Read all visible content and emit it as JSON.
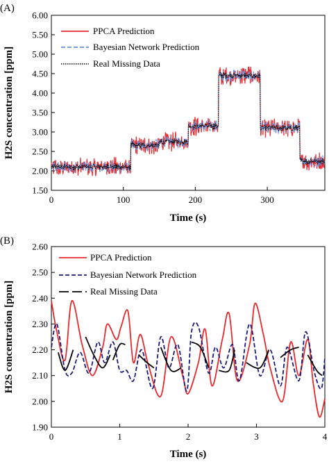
{
  "chart_data": [
    {
      "panel_label": "(A)",
      "type": "line",
      "xlabel": "Time (s)",
      "ylabel": "H2S concentration [ppm]",
      "xlim": [
        0,
        380
      ],
      "ylim": [
        1.5,
        6.0
      ],
      "xticks": [
        "0",
        "100",
        "200",
        "300"
      ],
      "xtick_values": [
        0,
        100,
        200,
        300
      ],
      "yticks": [
        "1.50",
        "2.00",
        "2.50",
        "3.00",
        "3.50",
        "4.00",
        "4.50",
        "5.00",
        "5.50",
        "6.00"
      ],
      "ytick_values": [
        1.5,
        2.0,
        2.5,
        3.0,
        3.5,
        4.0,
        4.5,
        5.0,
        5.5,
        6.0
      ],
      "grid": false,
      "legend_position": "top-left",
      "series": [
        {
          "name": "PPCA Prediction",
          "color": "#e8282b",
          "style": "solid",
          "noise": 0.17
        },
        {
          "name": "Bayesian Network Prediction",
          "color": "#6a8fd8",
          "style": "dashed",
          "noise": 0.11
        },
        {
          "name": "Real Missing Data",
          "color": "#000000",
          "style": "dotted",
          "noise": 0.06
        }
      ],
      "segments": [
        {
          "x": [
            0,
            110
          ],
          "level": 2.1
        },
        {
          "x": [
            110,
            150
          ],
          "level": 2.65
        },
        {
          "x": [
            150,
            190
          ],
          "level": 2.75
        },
        {
          "x": [
            190,
            232
          ],
          "level": 3.15
        },
        {
          "x": [
            232,
            290
          ],
          "level": 4.45
        },
        {
          "x": [
            290,
            345
          ],
          "level": 3.1
        },
        {
          "x": [
            345,
            380
          ],
          "level": 2.25
        }
      ]
    },
    {
      "panel_label": "(B)",
      "type": "line",
      "xlabel": "Time (s)",
      "ylabel": "H2S concentration [ppm]",
      "xlim": [
        0,
        4
      ],
      "ylim": [
        1.9,
        2.6
      ],
      "xticks": [
        "0",
        "1",
        "2",
        "3",
        "4"
      ],
      "xtick_values": [
        0,
        1,
        2,
        3,
        4
      ],
      "yticks": [
        "1.90",
        "2.00",
        "2.10",
        "2.20",
        "2.30",
        "2.40",
        "2.50",
        "2.60"
      ],
      "ytick_values": [
        1.9,
        2.0,
        2.1,
        2.2,
        2.3,
        2.4,
        2.5,
        2.6
      ],
      "grid": false,
      "legend_position": "top-center",
      "series": [
        {
          "name": "PPCA Prediction",
          "color": "#e8282b",
          "style": "solid",
          "x": [
            0,
            0.08,
            0.2,
            0.3,
            0.45,
            0.6,
            0.75,
            0.82,
            0.95,
            1.02,
            1.12,
            1.2,
            1.3,
            1.42,
            1.6,
            1.75,
            1.92,
            2.0,
            2.15,
            2.25,
            2.35,
            2.5,
            2.6,
            2.72,
            2.9,
            2.98,
            3.1,
            3.2,
            3.38,
            3.5,
            3.62,
            3.75,
            3.83,
            3.92,
            4.0
          ],
          "values": [
            2.39,
            2.27,
            2.16,
            2.39,
            2.22,
            2.1,
            2.21,
            2.3,
            2.24,
            2.29,
            2.35,
            2.15,
            2.26,
            2.14,
            2.02,
            2.25,
            2.1,
            2.03,
            2.15,
            2.28,
            2.06,
            2.24,
            2.34,
            2.08,
            2.22,
            2.38,
            2.26,
            2.13,
            2.0,
            2.23,
            2.1,
            2.24,
            2.07,
            1.94,
            2.01
          ]
        },
        {
          "name": "Bayesian Network Prediction",
          "color": "#1a1a7a",
          "style": "dashed",
          "x": [
            0,
            0.08,
            0.2,
            0.3,
            0.42,
            0.55,
            0.68,
            0.78,
            0.9,
            1.0,
            1.1,
            1.2,
            1.32,
            1.48,
            1.6,
            1.72,
            1.85,
            1.98,
            2.05,
            2.15,
            2.3,
            2.4,
            2.52,
            2.65,
            2.75,
            2.9,
            3.05,
            3.2,
            3.35,
            3.45,
            3.62,
            3.72,
            3.85,
            3.95,
            4.0
          ],
          "values": [
            2.21,
            2.3,
            2.12,
            2.11,
            2.19,
            2.11,
            2.23,
            2.15,
            2.23,
            2.12,
            2.12,
            2.08,
            2.2,
            2.05,
            2.25,
            2.13,
            2.22,
            2.04,
            2.27,
            2.29,
            2.11,
            2.21,
            2.13,
            2.22,
            2.08,
            2.3,
            2.1,
            2.2,
            2.06,
            2.21,
            2.08,
            2.27,
            2.11,
            2.05,
            2.17
          ]
        },
        {
          "name": "Real Missing Data",
          "color": "#000000",
          "style": "solid",
          "pieces": [
            {
              "x": [
                0.1,
                0.2,
                0.32
              ],
              "values": [
                2.19,
                2.12,
                2.2
              ]
            },
            {
              "x": [
                0.5,
                0.62,
                0.75,
                0.86
              ],
              "values": [
                2.25,
                2.18,
                2.13,
                2.18
              ]
            },
            {
              "x": [
                0.9,
                1.0,
                1.08
              ],
              "values": [
                2.16,
                2.22,
                2.22
              ]
            },
            {
              "x": [
                1.28,
                1.4,
                1.5
              ],
              "values": [
                2.18,
                2.15,
                2.13
              ]
            },
            {
              "x": [
                1.6,
                1.75,
                1.9
              ],
              "values": [
                2.21,
                2.12,
                2.13
              ]
            },
            {
              "x": [
                2.05,
                2.18,
                2.3
              ],
              "values": [
                2.23,
                2.21,
                2.13
              ]
            },
            {
              "x": [
                2.45,
                2.6,
                2.68
              ],
              "values": [
                2.12,
                2.12,
                2.2
              ]
            },
            {
              "x": [
                2.85,
                3.05,
                3.18
              ],
              "values": [
                2.15,
                2.13,
                2.2
              ]
            },
            {
              "x": [
                3.35,
                3.5,
                3.62
              ],
              "values": [
                2.17,
                2.2,
                2.21
              ]
            },
            {
              "x": [
                3.75,
                3.88,
                3.96
              ],
              "values": [
                2.18,
                2.12,
                2.1
              ]
            }
          ]
        }
      ]
    }
  ]
}
